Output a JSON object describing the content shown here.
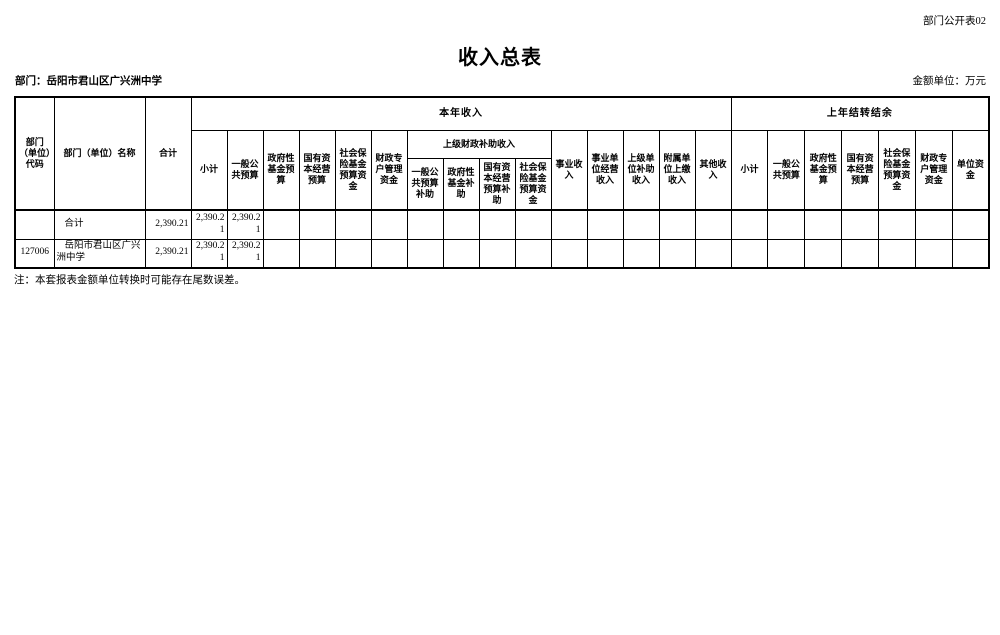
{
  "page": {
    "doc_label": "部门公开表02",
    "title": "收入总表",
    "department_label": "部门：岳阳市君山区广兴洲中学",
    "unit_label": "金额单位：万元",
    "note": "注：本套报表金额单位转换时可能存在尾数误差。"
  },
  "table": {
    "header": {
      "code": "部门（单位）代码",
      "name": "部门（单位）名称",
      "total": "合计",
      "current_year_group": "本年收入",
      "carryover_group": "上年结转结余",
      "subsidy_group": "上级财政补助收入",
      "cy": {
        "subtotal": "小计",
        "general_public_budget": "一般公共预算",
        "gov_fund_budget": "政府性基金预算",
        "state_capital_budget": "国有资本经营预算",
        "social_insurance_fund": "社会保险基金预算资金",
        "fiscal_special_account": "财政专户管理资金",
        "business_income": "事业收入",
        "business_operating_income": "事业单位经营收入",
        "higher_unit_subsidy_income": "上级单位补助收入",
        "affiliated_unit_income": "附属单位上缴收入",
        "other_income": "其他收入"
      },
      "subsidy": {
        "general_public_subsidy": "一般公共预算补助",
        "gov_fund_subsidy": "政府性基金补助",
        "state_capital_subsidy": "国有资本经营预算补助",
        "social_insurance_fund": "社会保险基金预算资金"
      },
      "co": {
        "subtotal": "小计",
        "general_public_budget": "一般公共预算",
        "gov_fund_budget": "政府性基金预算",
        "state_capital_budget": "国有资本经营预算",
        "social_insurance_fund": "社会保险基金预算资金",
        "fiscal_special_account": "财政专户管理资金",
        "unit_fund": "单位资金"
      }
    },
    "rows": [
      {
        "cells": [
          "",
          "合计",
          "2,390.21",
          "2,390.21",
          "2,390.21",
          "",
          "",
          "",
          "",
          "",
          "",
          "",
          "",
          "",
          "",
          "",
          "",
          "",
          "",
          "",
          "",
          "",
          "",
          "",
          ""
        ]
      },
      {
        "cells": [
          "127006",
          "岳阳市君山区广兴洲中学",
          "2,390.21",
          "2,390.21",
          "2,390.21",
          "",
          "",
          "",
          "",
          "",
          "",
          "",
          "",
          "",
          "",
          "",
          "",
          "",
          "",
          "",
          "",
          "",
          "",
          "",
          ""
        ]
      }
    ]
  }
}
